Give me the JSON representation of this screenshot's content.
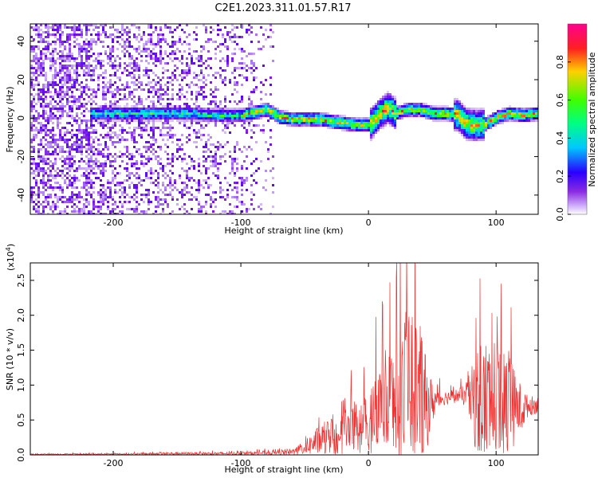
{
  "title": "C2E1.2023.311.01.57.R17",
  "chart_data": [
    {
      "type": "heatmap",
      "xlabel": "Height of straight line (km)",
      "ylabel": "Frequency (Hz)",
      "xlim": [
        -265,
        133
      ],
      "ylim": [
        -50,
        49
      ],
      "xticks": [
        -200,
        -100,
        0,
        100
      ],
      "xtick_labels": [
        "-200",
        "-100",
        "0",
        "100"
      ],
      "yticks": [
        -40,
        -20,
        0,
        20,
        40
      ],
      "ytick_labels": [
        "-40",
        "-20",
        "0",
        "20",
        "40"
      ],
      "colorbar": {
        "label": "Normalized spectral amplitude",
        "ticks": [
          0.0,
          0.2,
          0.4,
          0.6,
          0.8
        ],
        "tick_labels": [
          "0.0",
          "0.2",
          "0.4",
          "0.6",
          "0.8"
        ],
        "colormap": "rainbow"
      },
      "band_centerline_hz": {
        "x": [
          -215,
          -200,
          -180,
          -160,
          -140,
          -120,
          -100,
          -80,
          -70,
          -60,
          -50,
          -40,
          -30,
          -20,
          -10,
          0,
          10,
          15,
          20,
          30,
          40,
          50,
          60,
          70,
          75,
          80,
          90,
          100,
          110,
          120,
          133
        ],
        "y": [
          3,
          3,
          3,
          3,
          3,
          2,
          2,
          5,
          1,
          0,
          0,
          0,
          -1,
          -2,
          -3,
          -3,
          4,
          6,
          3,
          5,
          5,
          3,
          3,
          2,
          -2,
          -3,
          -3,
          1,
          3,
          2,
          3
        ]
      }
    },
    {
      "type": "line",
      "xlabel": "Height of straight line (km)",
      "ylabel": "SNR (10 * v/v)",
      "y_scale_label": "(x10^4)",
      "y_exponent_label": "(x10",
      "y_exponent_sup": "4",
      "xlim": [
        -265,
        133
      ],
      "ylim": [
        0,
        2.75
      ],
      "xticks": [
        -200,
        -100,
        0,
        100
      ],
      "xtick_labels": [
        "-200",
        "-100",
        "0",
        "100"
      ],
      "yticks": [
        0.0,
        0.5,
        1.0,
        1.5,
        2.0,
        2.5
      ],
      "ytick_labels": [
        "0.0",
        "0.5",
        "1.0",
        "1.5",
        "2.0",
        "2.5"
      ],
      "series": [
        {
          "color": "#ee3333",
          "envelope": {
            "x": [
              -265,
              -200,
              -150,
              -100,
              -80,
              -60,
              -50,
              -40,
              -30,
              -20,
              -10,
              0,
              10,
              20,
              25,
              30,
              35,
              40,
              45,
              50,
              55,
              60,
              70,
              75,
              80,
              85,
              90,
              95,
              100,
              105,
              110,
              115,
              120,
              125,
              133
            ],
            "mean": [
              0.01,
              0.01,
              0.02,
              0.02,
              0.03,
              0.04,
              0.1,
              0.2,
              0.25,
              0.3,
              0.35,
              0.4,
              0.55,
              0.65,
              0.7,
              0.8,
              0.85,
              0.8,
              0.7,
              0.75,
              0.8,
              0.82,
              0.85,
              0.85,
              0.8,
              0.75,
              0.75,
              0.8,
              0.75,
              0.75,
              0.7,
              0.7,
              0.65,
              0.7,
              0.72
            ],
            "amp": [
              0.01,
              0.01,
              0.02,
              0.02,
              0.03,
              0.05,
              0.1,
              0.2,
              0.3,
              0.4,
              0.45,
              0.55,
              0.9,
              1.0,
              1.2,
              1.4,
              1.3,
              1.1,
              0.7,
              0.3,
              0.15,
              0.1,
              0.1,
              0.15,
              0.4,
              0.8,
              0.9,
              0.9,
              0.85,
              0.9,
              0.8,
              0.5,
              0.35,
              0.15,
              0.12
            ]
          }
        }
      ]
    }
  ]
}
